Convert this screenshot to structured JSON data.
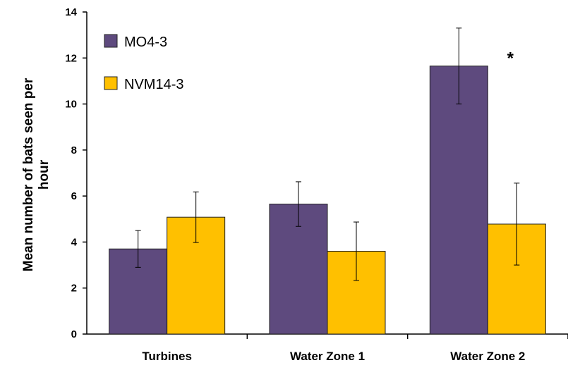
{
  "chart_data": {
    "type": "bar",
    "categories": [
      "Turbines",
      "Water Zone 1",
      "Water Zone 2"
    ],
    "series": [
      {
        "name": "MO4-3",
        "color": "#5e4a7e",
        "values": [
          3.7,
          5.65,
          11.65
        ],
        "errors": [
          0.8,
          0.97,
          1.65
        ]
      },
      {
        "name": "NVM14-3",
        "color": "#ffc000",
        "values": [
          5.08,
          3.6,
          4.78
        ],
        "errors": [
          1.1,
          1.27,
          1.78
        ]
      }
    ],
    "ylabel": "Mean number of bats seen per hour",
    "ylabel_lines": [
      "Mean number of bats seen per",
      "hour"
    ],
    "xlabel": "",
    "ylim": [
      0,
      14
    ],
    "yticks": [
      0,
      2,
      4,
      6,
      8,
      10,
      12,
      14
    ],
    "grid": false,
    "legend": "top-left",
    "annotations": [
      {
        "text": "*",
        "category": "Water Zone 2",
        "y": 12.3
      }
    ]
  }
}
